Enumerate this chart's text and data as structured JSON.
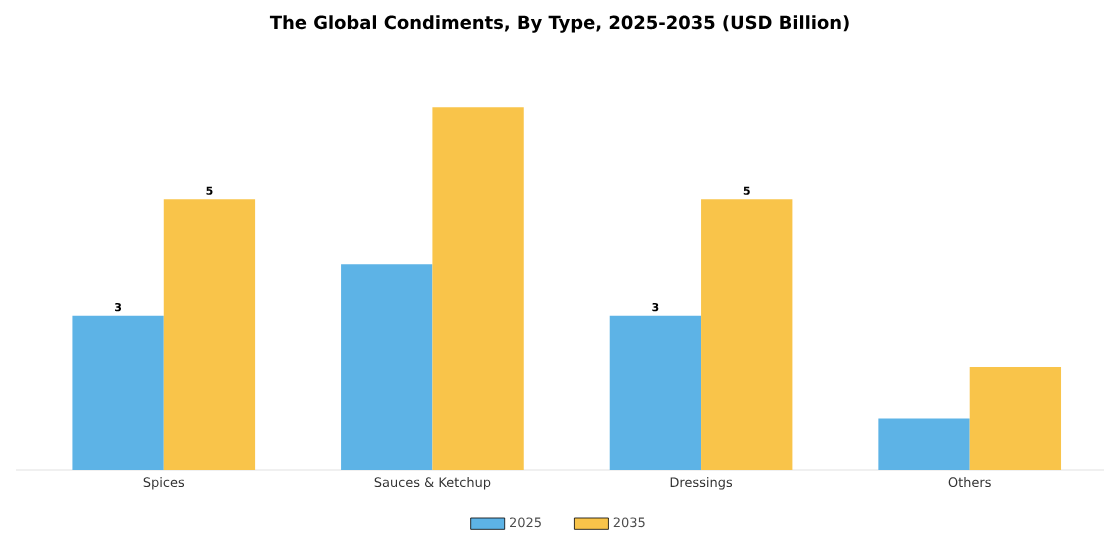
{
  "chart_data": {
    "type": "bar",
    "title": "The Global Condiments, By Type, 2025-2035 (USD Billion)",
    "categories": [
      "Spices",
      "Sauces & Ketchup",
      "Dressings",
      "Others"
    ],
    "series": [
      {
        "name": "2025",
        "color": "#5db3e6",
        "values": [
          2.85,
          3.8,
          2.85,
          0.95
        ],
        "value_labels": [
          "3",
          null,
          "3",
          null
        ]
      },
      {
        "name": "2035",
        "color": "#f9c44a",
        "values": [
          5.0,
          6.7,
          5.0,
          1.9
        ],
        "value_labels": [
          "5",
          null,
          "5",
          null
        ]
      }
    ],
    "legend": "bottom"
  }
}
